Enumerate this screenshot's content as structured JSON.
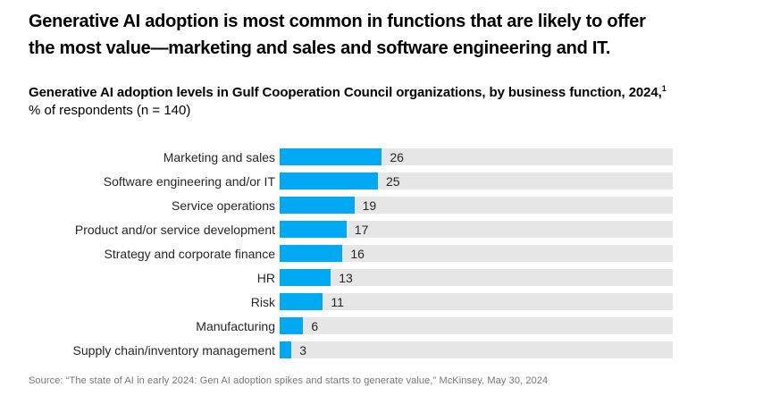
{
  "header": {
    "title_lines": [
      "Generative AI adoption is most common in functions that are likely to offer",
      "the most value—marketing and sales and software engineering and IT."
    ],
    "subtitle": "Generative AI adoption levels in Gulf Cooperation Council organizations, by business function, 2024,",
    "footnote_marker": "1",
    "unit_line": "% of respondents (n = 140)"
  },
  "chart_data": {
    "type": "bar",
    "orientation": "horizontal",
    "title": "Generative AI adoption levels in Gulf Cooperation Council organizations, by business function, 2024",
    "xlabel": "% of respondents",
    "ylabel": "Business function",
    "xlim": [
      0,
      100
    ],
    "grid": false,
    "legend": "none",
    "value_labels_shown": true,
    "bar_color": "#00A9F4",
    "track_color": "#E6E6E6",
    "categories": [
      "Marketing and sales",
      "Software engineering and/or IT",
      "Service operations",
      "Product and/or service development",
      "Strategy and corporate finance",
      "HR",
      "Risk",
      "Manufacturing",
      "Supply chain/inventory management"
    ],
    "values": [
      26,
      25,
      19,
      17,
      16,
      13,
      11,
      6,
      3
    ]
  },
  "footer": {
    "source": "Source: “The state of AI in early 2024: Gen AI adoption spikes and starts to generate value,” McKinsey, May 30, 2024"
  }
}
